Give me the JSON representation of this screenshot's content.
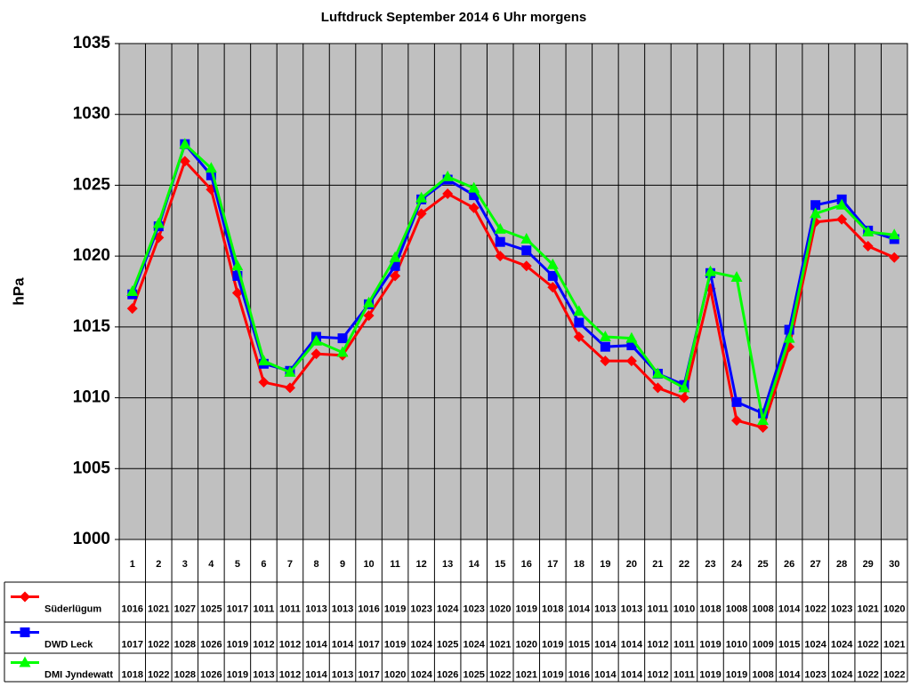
{
  "chart_data": {
    "type": "line",
    "title": "Luftdruck September 2014 6 Uhr morgens",
    "y_label": "hPa",
    "categories": [
      "1",
      "2",
      "3",
      "4",
      "5",
      "6",
      "7",
      "8",
      "9",
      "10",
      "11",
      "12",
      "13",
      "14",
      "15",
      "16",
      "17",
      "18",
      "19",
      "20",
      "21",
      "22",
      "23",
      "24",
      "25",
      "26",
      "27",
      "28",
      "29",
      "30"
    ],
    "ylim": [
      1000,
      1035
    ],
    "yticks": [
      1000,
      1005,
      1010,
      1015,
      1020,
      1025,
      1030,
      1035
    ],
    "grid": true,
    "series": [
      {
        "name": "Süderlügum",
        "color": "#ff0000",
        "marker": "diamond",
        "values": [
          1016.3,
          1021.3,
          1026.7,
          1024.7,
          1017.4,
          1011.1,
          1010.7,
          1013.1,
          1013.0,
          1015.8,
          1018.6,
          1023.0,
          1024.4,
          1023.4,
          1020.0,
          1019.3,
          1017.8,
          1014.3,
          1012.6,
          1012.6,
          1010.7,
          1010.0,
          1017.7,
          1008.4,
          1007.9,
          1013.6,
          1022.4,
          1022.6,
          1020.7,
          1019.9
        ],
        "value_labels": [
          "1016",
          "1021",
          "1027",
          "1025",
          "1017",
          "1011",
          "1011",
          "1013",
          "1013",
          "1016",
          "1019",
          "1023",
          "1024",
          "1023",
          "1020",
          "1019",
          "1018",
          "1014",
          "1013",
          "1013",
          "1011",
          "1010",
          "1018",
          "1008",
          "1008",
          "1014",
          "1022",
          "1023",
          "1021",
          "1020"
        ]
      },
      {
        "name": "DWD Leck",
        "color": "#0000ff",
        "marker": "square",
        "values": [
          1017.3,
          1022.1,
          1027.9,
          1025.7,
          1018.6,
          1012.4,
          1011.9,
          1014.3,
          1014.2,
          1016.6,
          1019.3,
          1024.0,
          1025.4,
          1024.3,
          1021.0,
          1020.4,
          1018.6,
          1015.3,
          1013.6,
          1013.7,
          1011.7,
          1010.9,
          1018.8,
          1009.7,
          1008.9,
          1014.8,
          1023.6,
          1024.0,
          1021.8,
          1021.2
        ],
        "value_labels": [
          "1017",
          "1022",
          "1028",
          "1026",
          "1019",
          "1012",
          "1012",
          "1014",
          "1014",
          "1017",
          "1019",
          "1024",
          "1025",
          "1024",
          "1021",
          "1020",
          "1019",
          "1015",
          "1014",
          "1014",
          "1012",
          "1011",
          "1019",
          "1010",
          "1009",
          "1015",
          "1024",
          "1024",
          "1022",
          "1021"
        ]
      },
      {
        "name": "DMI Jyndewatt",
        "color": "#00ff00",
        "marker": "triangle",
        "values": [
          1017.5,
          1022.3,
          1027.9,
          1026.2,
          1019.3,
          1012.6,
          1011.8,
          1014.0,
          1013.2,
          1016.7,
          1019.9,
          1024.1,
          1025.6,
          1024.8,
          1021.9,
          1021.2,
          1019.4,
          1016.1,
          1014.3,
          1014.2,
          1011.7,
          1010.7,
          1018.9,
          1018.5,
          1008.4,
          1014.2,
          1023.0,
          1023.6,
          1021.7,
          1021.5
        ],
        "value_labels": [
          "1018",
          "1022",
          "1028",
          "1026",
          "1019",
          "1013",
          "1012",
          "1014",
          "1013",
          "1017",
          "1020",
          "1024",
          "1026",
          "1025",
          "1022",
          "1021",
          "1019",
          "1016",
          "1014",
          "1014",
          "1012",
          "1011",
          "1019",
          "1019",
          "1008",
          "1014",
          "1023",
          "1024",
          "1022",
          "1022"
        ]
      }
    ]
  }
}
